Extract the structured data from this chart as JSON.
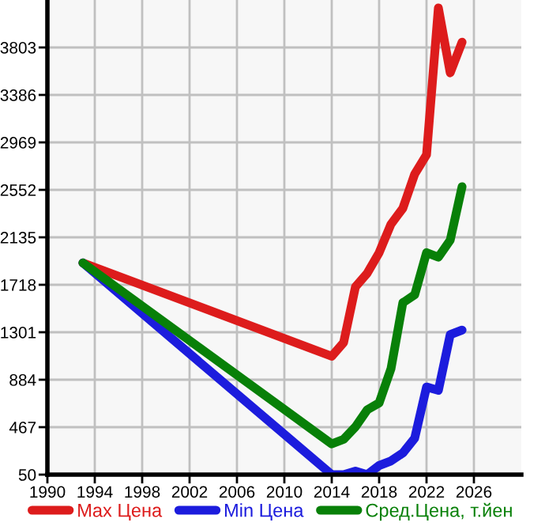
{
  "chart_data": {
    "type": "line",
    "x": [
      1993,
      2014,
      2015,
      2016,
      2017,
      2018,
      2019,
      2020,
      2021,
      2022,
      2023,
      2024,
      2025
    ],
    "series": [
      {
        "name": "Max Цена",
        "color": "#dd1c1c",
        "values": [
          1910,
          1090,
          1210,
          1700,
          1820,
          2000,
          2250,
          2390,
          2690,
          2860,
          4150,
          3580,
          3850
        ]
      },
      {
        "name": "Min Цена",
        "color": "#1c1cdd",
        "values": [
          1910,
          50,
          50,
          80,
          50,
          130,
          170,
          240,
          370,
          820,
          790,
          1280,
          1320
        ]
      },
      {
        "name": "Сред.Цена, т.йен",
        "color": "#088008",
        "values": [
          1910,
          320,
          360,
          470,
          620,
          680,
          980,
          1560,
          1630,
          2000,
          1960,
          2110,
          2580
        ]
      }
    ],
    "xlim": [
      1990,
      2030
    ],
    "xticks": [
      1990,
      1994,
      1998,
      2002,
      2006,
      2010,
      2014,
      2018,
      2022,
      2026
    ],
    "ylim": [
      50,
      4220
    ],
    "yticks": [
      50,
      467,
      884,
      1301,
      1718,
      2135,
      2552,
      2969,
      3386,
      3803
    ],
    "grid": true,
    "legend": "bottom",
    "marker": "none",
    "line_style": "solid"
  }
}
